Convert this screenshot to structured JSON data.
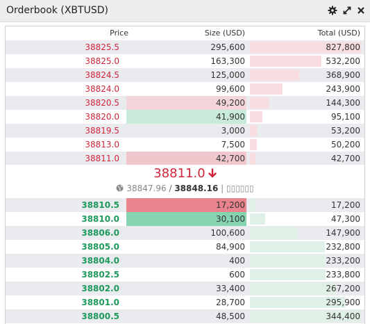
{
  "window": {
    "title": "Orderbook (XBTUSD)",
    "icons": [
      "gear-icon",
      "expand-icon",
      "close-icon"
    ]
  },
  "columns": {
    "price": "Price",
    "size": "Size (USD)",
    "total": "Total (USD)"
  },
  "asks": [
    {
      "price": "38825.5",
      "size": "295,600",
      "total": "827,800",
      "size_fill": 0,
      "size_fill_color": "",
      "total_fraction": 1.0
    },
    {
      "price": "38825.0",
      "size": "163,300",
      "total": "532,200",
      "size_fill": 0,
      "size_fill_color": "",
      "total_fraction": 0.643
    },
    {
      "price": "38824.5",
      "size": "125,000",
      "total": "368,900",
      "size_fill": 0,
      "size_fill_color": "",
      "total_fraction": 0.446
    },
    {
      "price": "38824.0",
      "size": "99,600",
      "total": "243,900",
      "size_fill": 0,
      "size_fill_color": "",
      "total_fraction": 0.295
    },
    {
      "price": "38820.5",
      "size": "49,200",
      "total": "144,300",
      "size_fill": 1.0,
      "size_fill_color": "#f3d6db",
      "total_fraction": 0.174
    },
    {
      "price": "38820.0",
      "size": "41,900",
      "total": "95,100",
      "size_fill": 1.0,
      "size_fill_color": "#c8ecd9",
      "total_fraction": 0.115
    },
    {
      "price": "38819.5",
      "size": "3,000",
      "total": "53,200",
      "size_fill": 0,
      "size_fill_color": "",
      "total_fraction": 0.064
    },
    {
      "price": "38813.0",
      "size": "7,500",
      "total": "50,200",
      "size_fill": 0,
      "size_fill_color": "",
      "total_fraction": 0.061
    },
    {
      "price": "38811.0",
      "size": "42,700",
      "total": "42,700",
      "size_fill": 1.0,
      "size_fill_color": "#efc7cd",
      "total_fraction": 0.052
    }
  ],
  "last_trade": {
    "price": "38811.0",
    "direction": "down",
    "arrow": "🡓",
    "mark_price": "38847.96",
    "separator": " / ",
    "fair_price": "38848.16",
    "trailing": " | ▯▯▯▯▯▯"
  },
  "bids": [
    {
      "price": "38810.5",
      "size": "17,200",
      "total": "17,200",
      "size_fill": 1.0,
      "size_fill_color": "#e8848e",
      "total_fraction": 0.05
    },
    {
      "price": "38810.0",
      "size": "30,100",
      "total": "47,300",
      "size_fill": 1.0,
      "size_fill_color": "#86d3b1",
      "total_fraction": 0.137
    },
    {
      "price": "38806.0",
      "size": "100,600",
      "total": "147,900",
      "size_fill": 0,
      "size_fill_color": "",
      "total_fraction": 0.429
    },
    {
      "price": "38805.0",
      "size": "84,900",
      "total": "232,800",
      "size_fill": 0,
      "size_fill_color": "",
      "total_fraction": 0.676
    },
    {
      "price": "38804.0",
      "size": "400",
      "total": "233,200",
      "size_fill": 0,
      "size_fill_color": "",
      "total_fraction": 0.677
    },
    {
      "price": "38802.5",
      "size": "600",
      "total": "233,800",
      "size_fill": 0,
      "size_fill_color": "",
      "total_fraction": 0.679
    },
    {
      "price": "38802.0",
      "size": "33,400",
      "total": "267,200",
      "size_fill": 0,
      "size_fill_color": "",
      "total_fraction": 0.776
    },
    {
      "price": "38801.0",
      "size": "28,700",
      "total": "295,900",
      "size_fill": 0,
      "size_fill_color": "",
      "total_fraction": 0.859
    },
    {
      "price": "38800.5",
      "size": "48,500",
      "total": "344,400",
      "size_fill": 0,
      "size_fill_color": "",
      "total_fraction": 1.0
    }
  ],
  "colors": {
    "ask_price": "#d0263a",
    "bid_price": "#1f9a5a",
    "ask_depth": "#f7dde0",
    "bid_depth": "#dff1e6",
    "alt_row": "#e9ebef"
  }
}
